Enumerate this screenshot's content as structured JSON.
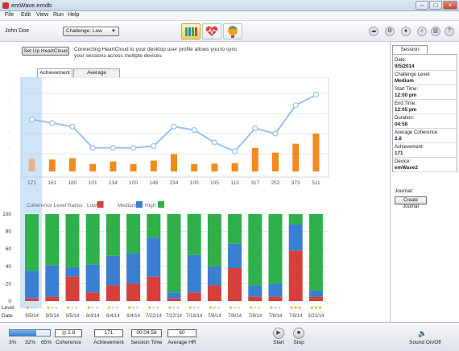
{
  "window": {
    "title": "emWave.emdb"
  },
  "menu": [
    "File",
    "Edit",
    "View",
    "Run",
    "Help"
  ],
  "toolbar": {
    "user": "John Doe",
    "challenge": "Challenge: Low"
  },
  "heartcloud": {
    "button": "Set Up HeartCloud",
    "text": "Connecting HeartCloud to your desktop user profile allows you to sync your sessions across multiple devices"
  },
  "chart_tabs": [
    "Achievement",
    "Average Coherence"
  ],
  "chart_data": {
    "type": "bar",
    "achievement": [
      171,
      161,
      180,
      101,
      134,
      100,
      146,
      234,
      100,
      105,
      113,
      317,
      252,
      373,
      511
    ],
    "coherence_line": [
      2.8,
      2.6,
      2.4,
      1.2,
      1.2,
      1.2,
      1.3,
      2.4,
      2.2,
      1.5,
      1.0,
      2.3,
      2.0,
      3.6,
      4.2
    ],
    "coherence_ratios_label": "Coherence Level Ratios",
    "legend": [
      "Low",
      "Medium",
      "High"
    ],
    "ratio_ylim": [
      0,
      100
    ],
    "ratio_yticks": [
      0,
      20,
      40,
      60,
      80,
      100
    ],
    "low": [
      3,
      5,
      28,
      10,
      18,
      20,
      28,
      3,
      10,
      18,
      38,
      5,
      5,
      58,
      5
    ],
    "medium": [
      32,
      36,
      11,
      32,
      34,
      35,
      45,
      7,
      43,
      22,
      28,
      13,
      15,
      30,
      7
    ],
    "level_stars": [
      1,
      1,
      1,
      1,
      1,
      1,
      1,
      1,
      1,
      1,
      1,
      1,
      1,
      3,
      3
    ],
    "dates": [
      "9/5/14",
      "9/5/14",
      "9/5/14",
      "8/4/14",
      "8/4/14",
      "8/4/14",
      "7/22/14",
      "7/22/14",
      "7/18/14",
      "7/8/14",
      "7/8/14",
      "7/8/14",
      "7/8/14",
      "7/8/14",
      "3/21/14"
    ],
    "row_labels": {
      "level": "Level",
      "date": "Date"
    }
  },
  "colors": {
    "low": "#d6403a",
    "medium": "#3a7fd0",
    "high": "#2fb04a",
    "achievement": "#f28a1e",
    "line": "#9cc1ea"
  },
  "panel": {
    "tab": "Session",
    "rows": [
      {
        "label": "Date:",
        "value": "9/5/2014"
      },
      {
        "label": "Challenge Level:",
        "value": "Medium"
      },
      {
        "label": "Start Time:",
        "value": "12:00 pm"
      },
      {
        "label": "End Time:",
        "value": "12:05 pm"
      },
      {
        "label": "Duration:",
        "value": "04:58"
      },
      {
        "label": "Average Coherence:",
        "value": "2.8"
      },
      {
        "label": "Achievement:",
        "value": "171"
      },
      {
        "label": "Device:",
        "value": "emWave2"
      }
    ],
    "journal_label": "Journal:",
    "journal_button": "Create Journal"
  },
  "bottom": {
    "progress_fraction": 0.65,
    "pct_low": "3%",
    "pct_med": "32%",
    "pct_high": "65%",
    "coherence_value": "2.8",
    "coherence_label": "Coherence",
    "achievement_value": "171",
    "achievement_label": "Achievement",
    "session_time_value": "00:04:58",
    "session_time_label": "Session Time",
    "avg_hr_value": "60",
    "avg_hr_label": "Average HR",
    "start_label": "Start",
    "stop_label": "Stop",
    "sound_label": "Sound On/Off"
  }
}
